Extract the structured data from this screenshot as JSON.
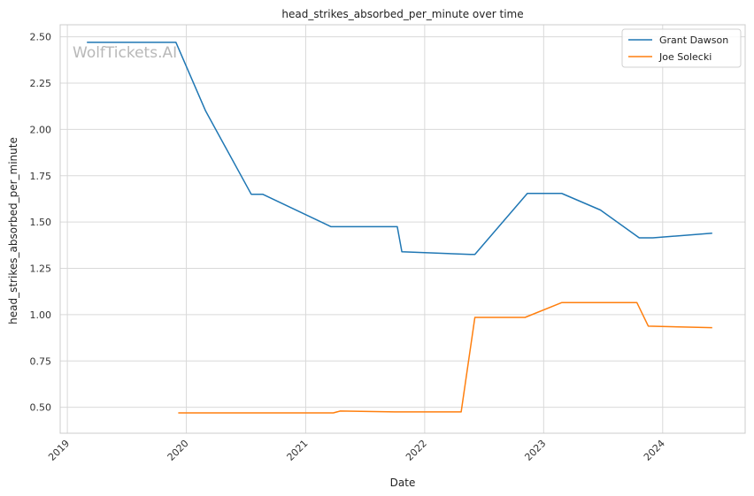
{
  "watermark": "WolfTickets.AI",
  "chart_data": {
    "type": "line",
    "title": "head_strikes_absorbed_per_minute over time",
    "xlabel": "Date",
    "ylabel": "head_strikes_absorbed_per_minute",
    "xlim": [
      "2018-12-10",
      "2024-09-10"
    ],
    "ylim": [
      0.36,
      2.565
    ],
    "x_ticks": [
      "2019",
      "2020",
      "2021",
      "2022",
      "2023",
      "2024"
    ],
    "y_ticks": [
      "0.50",
      "0.75",
      "1.00",
      "1.25",
      "1.50",
      "1.75",
      "2.00",
      "2.25",
      "2.50"
    ],
    "grid": true,
    "legend_position": "top-right",
    "colors": {
      "grid": "#d9d9d9",
      "frame": "#cccccc"
    },
    "series": [
      {
        "name": "Grant Dawson",
        "color": "#1f77b4",
        "points": [
          [
            "2019-03-02",
            2.47
          ],
          [
            "2019-11-30",
            2.47
          ],
          [
            "2020-02-29",
            2.1
          ],
          [
            "2020-07-18",
            1.65
          ],
          [
            "2020-08-22",
            1.65
          ],
          [
            "2021-03-20",
            1.475
          ],
          [
            "2021-10-09",
            1.475
          ],
          [
            "2021-10-23",
            1.34
          ],
          [
            "2022-05-21",
            1.325
          ],
          [
            "2022-06-04",
            1.325
          ],
          [
            "2022-11-12",
            1.655
          ],
          [
            "2023-02-25",
            1.655
          ],
          [
            "2023-06-24",
            1.565
          ],
          [
            "2023-10-21",
            1.415
          ],
          [
            "2023-12-02",
            1.415
          ],
          [
            "2024-06-01",
            1.44
          ]
        ]
      },
      {
        "name": "Joe Solecki",
        "color": "#ff7f0e",
        "points": [
          [
            "2019-12-07",
            0.47
          ],
          [
            "2021-03-27",
            0.47
          ],
          [
            "2021-04-17",
            0.48
          ],
          [
            "2021-10-02",
            0.475
          ],
          [
            "2022-04-23",
            0.475
          ],
          [
            "2022-06-04",
            0.985
          ],
          [
            "2022-11-05",
            0.985
          ],
          [
            "2023-02-25",
            1.065
          ],
          [
            "2023-10-14",
            1.065
          ],
          [
            "2023-11-18",
            0.938
          ],
          [
            "2024-06-01",
            0.93
          ]
        ]
      }
    ]
  }
}
